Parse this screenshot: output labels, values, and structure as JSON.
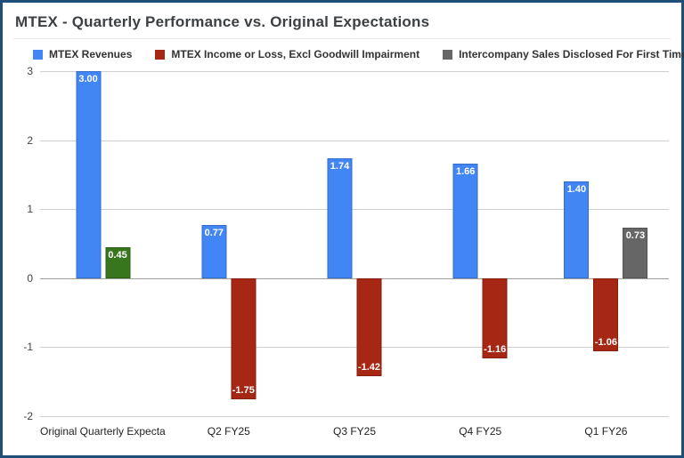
{
  "frame": {
    "border_color": "#1f4e79",
    "background": "#ffffff"
  },
  "chart": {
    "title": "MTEX - Quarterly Performance vs. Original Expectations"
  },
  "chart_data": {
    "type": "bar",
    "title": "MTEX - Quarterly Performance vs. Original Expectations",
    "categories": [
      "Original Quarterly Expectation",
      "Q2 FY25",
      "Q3 FY25",
      "Q4 FY25",
      "Q1 FY26"
    ],
    "series": [
      {
        "name": "MTEX Revenues",
        "color": "#4285f4",
        "values": [
          3.0,
          0.77,
          1.74,
          1.66,
          1.4
        ],
        "labels": [
          "3.00",
          "0.77",
          "1.74",
          "1.66",
          "1.40"
        ]
      },
      {
        "name": "MTEX Income or Loss, Excl Goodwill Impairment",
        "color": "#a52714",
        "values": [
          0.45,
          -1.75,
          -1.42,
          -1.16,
          -1.06
        ],
        "labels": [
          "0.45",
          "-1.75",
          "-1.42",
          "-1.16",
          "-1.06"
        ],
        "point_colors": {
          "0": "#38761d"
        }
      },
      {
        "name": "Intercompany Sales Disclosed For First Time - ?????",
        "color": "#666666",
        "values": [
          null,
          null,
          null,
          null,
          0.73
        ],
        "labels": [
          null,
          null,
          null,
          null,
          "0.73"
        ]
      }
    ],
    "ylim": [
      -2,
      3
    ],
    "yticks": [
      3,
      2,
      1,
      0,
      -1,
      -2
    ],
    "grid": true,
    "legend_position": "top",
    "value_label_color": "#ffffff",
    "xlabel": "",
    "ylabel": ""
  }
}
